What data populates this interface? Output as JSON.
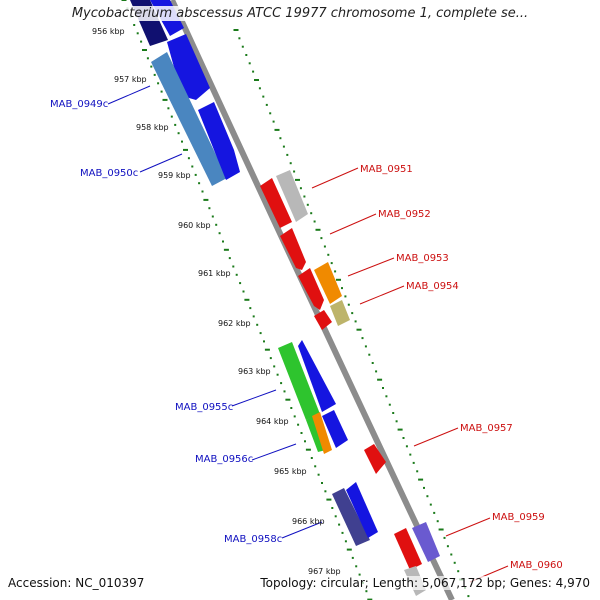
{
  "header": {
    "title": "Mycobacterium abscessus ATCC 19977 chromosome 1, complete se..."
  },
  "footer": {
    "accession": "Accession: NC_010397",
    "stats": "Topology: circular; Length: 5,067,172 bp; Genes: 4,970"
  },
  "colors": {
    "backbone": "#8c8c8c",
    "tick_track": "#1a7a1a",
    "blue_gene": "#1515e0",
    "red_gene": "#e01010",
    "green_gene": "#2ec42e",
    "orange_gene": "#f08a00",
    "steelblue_gene": "#4a86c0",
    "gray_gene": "#b8b8b8",
    "khaki_gene": "#bdb46a",
    "slate_gene": "#404090",
    "purple_gene": "#6a5ad0",
    "navy_gene": "#101070",
    "label_left": "#1010c0",
    "label_right": "#cc1010"
  },
  "kbp_ticks": [
    "956 kbp",
    "957 kbp",
    "958 kbp",
    "959 kbp",
    "960 kbp",
    "961 kbp",
    "962 kbp",
    "963 kbp",
    "964 kbp",
    "965 kbp",
    "966 kbp",
    "967 kbp"
  ],
  "gene_labels": {
    "left": [
      "MAB_0949c",
      "MAB_0950c",
      "MAB_0955c",
      "MAB_0956c",
      "MAB_0958c"
    ],
    "right": [
      "MAB_0951",
      "MAB_0952",
      "MAB_0953",
      "MAB_0954",
      "MAB_0957",
      "MAB_0959",
      "MAB_0960"
    ]
  }
}
